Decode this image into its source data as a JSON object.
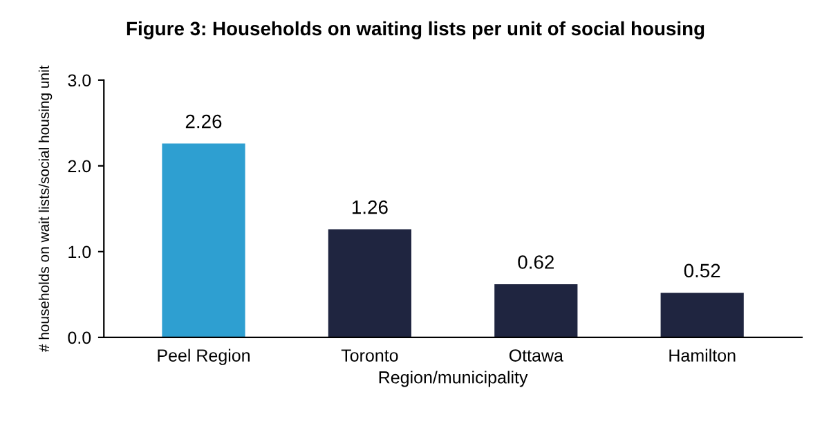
{
  "chart_data": {
    "type": "bar",
    "title": "Figure 3: Households on waiting lists per unit of social housing",
    "xlabel": "Region/municipality",
    "ylabel": "# households on wait lists/social housing unit",
    "categories": [
      "Peel Region",
      "Toronto",
      "Ottawa",
      "Hamilton"
    ],
    "values": [
      2.26,
      1.26,
      0.62,
      0.52
    ],
    "colors": [
      "#2e9fd1",
      "#1f2540",
      "#1f2540",
      "#1f2540"
    ],
    "ylim": [
      0,
      3
    ],
    "yticks": [
      {
        "value": 0,
        "label": "0.0"
      },
      {
        "value": 1,
        "label": "1.0"
      },
      {
        "value": 2,
        "label": "2.0"
      },
      {
        "value": 3,
        "label": "3.0"
      }
    ],
    "data_labels": true,
    "grid": false,
    "legend": false
  }
}
